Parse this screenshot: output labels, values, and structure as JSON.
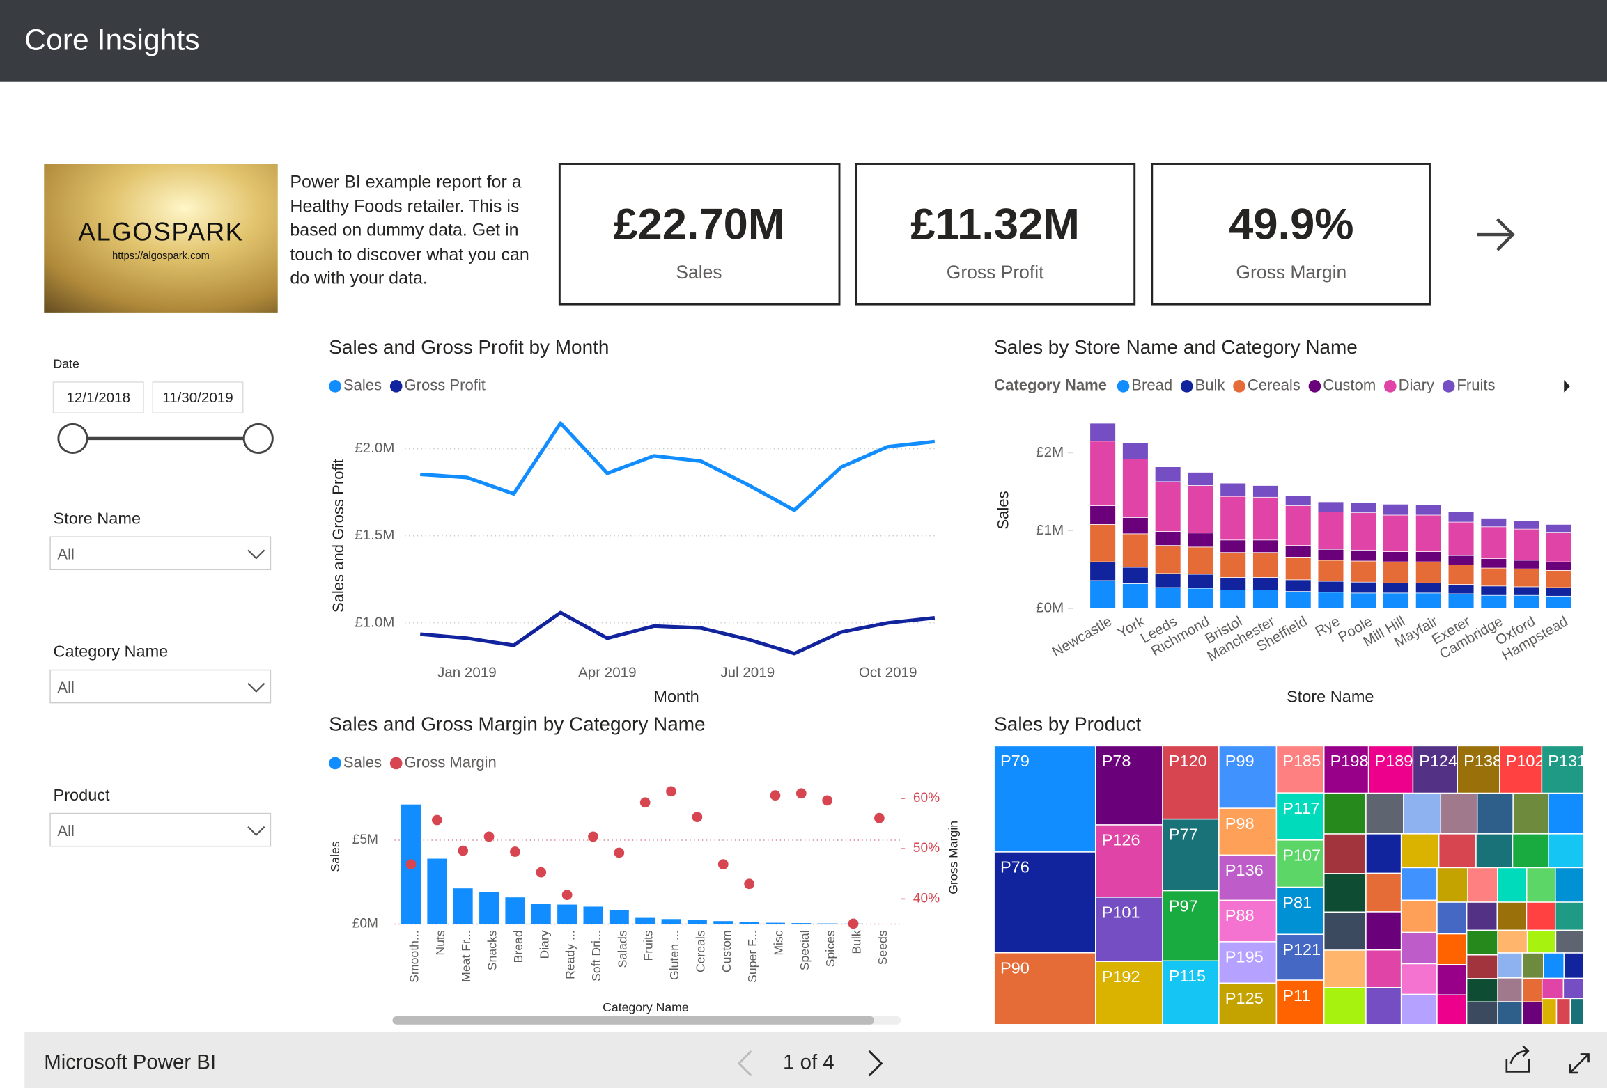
{
  "header": {
    "title": "Core Insights"
  },
  "logo": {
    "name": "ALGOSPARK",
    "url": "https://algospark.com"
  },
  "description": "Power BI example report for a Healthy Foods retailer. This is based on dummy data. Get in touch to discover what you can do with your data.",
  "kpis": [
    {
      "value": "£22.70M",
      "label": "Sales"
    },
    {
      "value": "£11.32M",
      "label": "Gross Profit"
    },
    {
      "value": "49.9%",
      "label": "Gross Margin"
    }
  ],
  "filters": {
    "date": {
      "label": "Date",
      "from": "12/1/2018",
      "to": "11/30/2019"
    },
    "dropdowns": [
      {
        "label": "Store Name",
        "value": "All"
      },
      {
        "label": "Category Name",
        "value": "All"
      },
      {
        "label": "Product",
        "value": "All"
      }
    ]
  },
  "chart_data": [
    {
      "type": "line",
      "title": "Sales and Gross Profit by Month",
      "x_label": "Month",
      "y_label": "Sales and Gross Profit",
      "categories": [
        null,
        "Jan 2019",
        null,
        null,
        "Apr 2019",
        null,
        null,
        "Jul 2019",
        null,
        null,
        "Oct 2019",
        null
      ],
      "series": [
        {
          "name": "Sales",
          "color": "#118DFF",
          "values": [
            1853000,
            1835000,
            1741000,
            2147000,
            1859000,
            1959000,
            1929000,
            1794000,
            1647000,
            1894000,
            2012000,
            2041000
          ]
        },
        {
          "name": "Gross Profit",
          "color": "#12239E",
          "values": [
            935000,
            912000,
            871000,
            1059000,
            912000,
            982000,
            971000,
            906000,
            824000,
            947000,
            1000000,
            1029000
          ]
        }
      ],
      "ylim": [
        800000,
        2200000
      ],
      "yticks": [
        {
          "value": 1000000,
          "label": "£1.0M"
        },
        {
          "value": 1500000,
          "label": "£1.5M"
        },
        {
          "value": 2000000,
          "label": "£2.0M"
        }
      ],
      "grid": true
    },
    {
      "type": "stacked_bar",
      "title": "Sales by Store Name and Category Name",
      "legend_title": "Category Name",
      "x_label": "Store Name",
      "y_label": "Sales",
      "categories": [
        "Newcastle",
        "York",
        "Leeds",
        "Richmond",
        "Bristol",
        "Manchester",
        "Sheffield",
        "Rye",
        "Poole",
        "Mill Hill",
        "Mayfair",
        "Exeter",
        "Cambridge",
        "Oxford",
        "Hampstead"
      ],
      "series": [
        {
          "name": "Bread",
          "color": "#118DFF",
          "values": [
            360000,
            320000,
            270000,
            260000,
            240000,
            240000,
            220000,
            210000,
            200000,
            200000,
            200000,
            190000,
            170000,
            170000,
            160000
          ]
        },
        {
          "name": "Bulk",
          "color": "#12239E",
          "values": [
            240000,
            210000,
            180000,
            180000,
            160000,
            160000,
            150000,
            140000,
            140000,
            130000,
            130000,
            120000,
            120000,
            110000,
            110000
          ]
        },
        {
          "name": "Cereals",
          "color": "#E66C37",
          "values": [
            480000,
            430000,
            360000,
            350000,
            320000,
            320000,
            290000,
            270000,
            270000,
            270000,
            270000,
            250000,
            230000,
            230000,
            220000
          ]
        },
        {
          "name": "Custom",
          "color": "#6B007B",
          "values": [
            240000,
            210000,
            180000,
            180000,
            160000,
            160000,
            150000,
            140000,
            140000,
            130000,
            130000,
            120000,
            120000,
            110000,
            110000
          ]
        },
        {
          "name": "Diary",
          "color": "#E044A7",
          "values": [
            830000,
            750000,
            640000,
            610000,
            560000,
            550000,
            510000,
            480000,
            480000,
            470000,
            470000,
            430000,
            410000,
            400000,
            380000
          ]
        },
        {
          "name": "Fruits",
          "color": "#744EC2",
          "values": [
            230000,
            210000,
            190000,
            170000,
            170000,
            150000,
            130000,
            130000,
            130000,
            140000,
            130000,
            130000,
            110000,
            110000,
            100000
          ]
        }
      ],
      "ylim": [
        0,
        2500000
      ],
      "yticks": [
        {
          "value": 0,
          "label": "£0M"
        },
        {
          "value": 1000000,
          "label": "£1M"
        },
        {
          "value": 2000000,
          "label": "£2M"
        }
      ]
    },
    {
      "type": "combo",
      "title": "Sales and Gross Margin by Category Name",
      "x_label": "Category Name",
      "y_label": "Sales",
      "y2_label": "Gross Margin",
      "categories": [
        "Smooth...",
        "Nuts",
        "Meat Fr...",
        "Snacks",
        "Bread",
        "Diary",
        "Ready ...",
        "Soft Dri...",
        "Salads",
        "Fruits",
        "Gluten ...",
        "Cereals",
        "Custom",
        "Super F...",
        "Misc",
        "Special",
        "Spices",
        "Bulk",
        "Seeds"
      ],
      "series": [
        {
          "name": "Sales",
          "color": "#118DFF",
          "mark": "bar",
          "values": [
            7130000,
            3900000,
            2130000,
            1890000,
            1590000,
            1220000,
            1160000,
            1040000,
            850000,
            370000,
            300000,
            240000,
            180000,
            120000,
            80000,
            60000,
            40000,
            30000,
            20000
          ]
        },
        {
          "name": "Gross Margin",
          "color": "#D64550",
          "mark": "dot",
          "axis": "y2",
          "values": [
            46.9,
            55.7,
            49.6,
            52.4,
            49.4,
            45.3,
            40.8,
            52.4,
            49.2,
            59.2,
            61.4,
            56.3,
            46.9,
            43.0,
            60.6,
            61.0,
            59.6,
            35.1,
            56.1
          ]
        }
      ],
      "ylim": [
        0,
        8000000
      ],
      "yticks": [
        {
          "value": 0,
          "label": "£0M"
        },
        {
          "value": 5000000,
          "label": "£5M"
        }
      ],
      "y2lim": [
        35,
        61.7
      ],
      "y2ticks": [
        {
          "value": 40,
          "label": "40%"
        },
        {
          "value": 50,
          "label": "50%"
        },
        {
          "value": 60,
          "label": "60%"
        }
      ],
      "grid": true
    },
    {
      "type": "treemap",
      "title": "Sales by Product",
      "categories": [
        "P79",
        "P76",
        "P90",
        "P78",
        "P126",
        "P101",
        "P192",
        "P120",
        "P77",
        "P97",
        "P115",
        "P99",
        "P98",
        "P136",
        "P88",
        "P195",
        "P125",
        "P185",
        "P117",
        "P107",
        "P81",
        "P121",
        "P11",
        "P198",
        "P189",
        "P124",
        "P138",
        "P102",
        "P131",
        null,
        null,
        null,
        null,
        null,
        null,
        null,
        null,
        null,
        null,
        null,
        null,
        null,
        null,
        null,
        null,
        null,
        null,
        null,
        null,
        null,
        null,
        null,
        null,
        null,
        null,
        null,
        null,
        null,
        null,
        null,
        null,
        null,
        null,
        null,
        null,
        null,
        null,
        null,
        null,
        null,
        null,
        null,
        null,
        null,
        null,
        null,
        null,
        null,
        null,
        null,
        null,
        null,
        null,
        null,
        null,
        null,
        null,
        null,
        null
      ],
      "values": [
        1200000,
        1140000,
        810000,
        590000,
        540000,
        480000,
        470000,
        460000,
        450000,
        440000,
        400000,
        400000,
        300000,
        290000,
        265000,
        265000,
        265000,
        250000,
        250000,
        250000,
        250000,
        243000,
        235000,
        235000,
        235000,
        235000,
        223000,
        223000,
        220000,
        190000,
        185000,
        180000,
        178000,
        175000,
        172000,
        170000,
        168000,
        165000,
        162000,
        160000,
        158000,
        155000,
        152000,
        150000,
        148000,
        145000,
        142000,
        140000,
        138000,
        135000,
        132000,
        130000,
        128000,
        125000,
        122000,
        120000,
        118000,
        115000,
        112000,
        110000,
        108000,
        105000,
        102000,
        100000,
        98000,
        95000,
        92000,
        90000,
        88000,
        85000,
        82000,
        80000,
        78000,
        75000,
        72000,
        70000,
        68000,
        65000,
        62000,
        60000,
        58000,
        55000,
        52000,
        50000,
        48000,
        45000,
        42000,
        40000,
        38000
      ],
      "palette": [
        "#118DFF",
        "#12239E",
        "#E66C37",
        "#6B007B",
        "#E044A7",
        "#744EC2",
        "#D9B300",
        "#D64550",
        "#197278",
        "#1AAB40",
        "#15C6F4",
        "#4092FF",
        "#FFA058",
        "#BE5DC9",
        "#F472D0",
        "#B5A1FF",
        "#C4A200",
        "#FF8080",
        "#00DBBC",
        "#5BD667",
        "#0091D5",
        "#4668C5",
        "#FF6300",
        "#99008A",
        "#EC008C",
        "#533285",
        "#99700A",
        "#FF4141",
        "#1F9A85",
        "#25891C",
        "#A1343C",
        "#0E4D33",
        "#3B4A5F",
        "#FFB56B",
        "#A7F20E",
        "#5E6470",
        "#8EB2F0",
        "#A07A8C",
        "#2D5F8A",
        "#6E8B3D"
      ]
    }
  ],
  "footer": {
    "brand": "Microsoft Power BI",
    "page": "1 of 4"
  }
}
